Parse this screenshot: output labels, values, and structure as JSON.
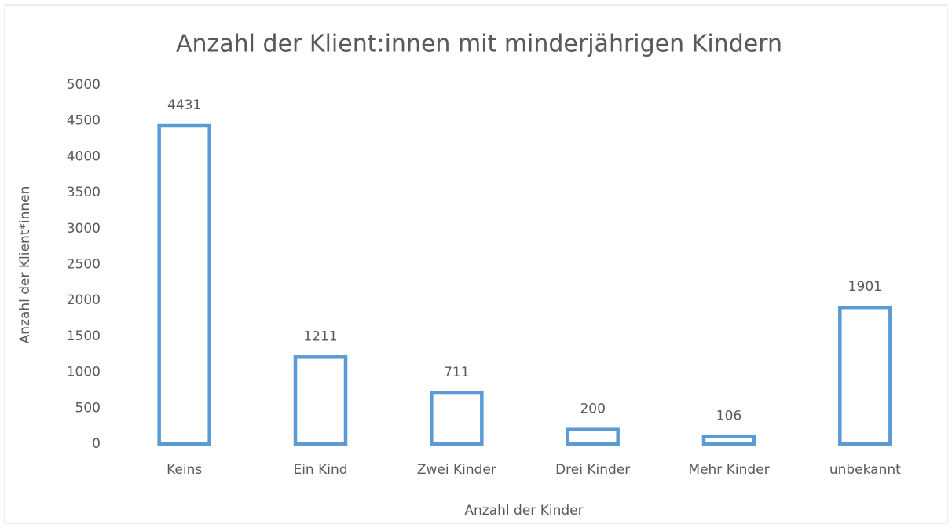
{
  "chart_data": {
    "type": "bar",
    "title": "Anzahl der Klient:innen mit minderjährigen Kindern",
    "x_label": "Anzahl der Kinder",
    "y_label": "Anzahl der Klient*innen",
    "categories": [
      "Keins",
      "Ein Kind",
      "Zwei Kinder",
      "Drei Kinder",
      "Mehr Kinder",
      "unbekannt"
    ],
    "values": [
      4431,
      1211,
      711,
      200,
      106,
      1901
    ],
    "color": "#5b9bd5",
    "ylim": [
      0,
      5000
    ],
    "yticks": [
      0,
      500,
      1000,
      1500,
      2000,
      2500,
      3000,
      3500,
      4000,
      4500,
      5000
    ],
    "grid": false
  }
}
